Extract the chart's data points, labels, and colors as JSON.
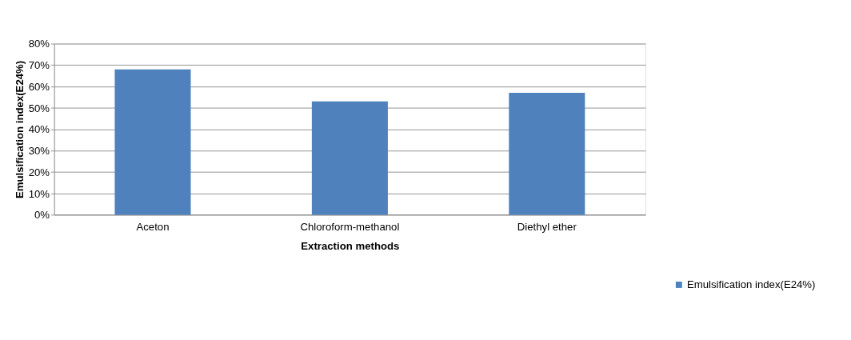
{
  "chart_data": {
    "type": "bar",
    "xlabel": "Extraction methods",
    "ylabel": "Emulsification index(E24%)",
    "categories": [
      "Aceton",
      "Chloroform-methanol",
      "Diethyl ether"
    ],
    "series": [
      {
        "name": "Emulsification index(E24%)",
        "color": "#4f81bd",
        "values": [
          68,
          53,
          57
        ]
      }
    ],
    "ylim": [
      0,
      80
    ],
    "yticks": [
      {
        "value": 0,
        "label": "0%"
      },
      {
        "value": 10,
        "label": "10%"
      },
      {
        "value": 20,
        "label": "20%"
      },
      {
        "value": 30,
        "label": "30%"
      },
      {
        "value": 40,
        "label": "40%"
      },
      {
        "value": 50,
        "label": "50%"
      },
      {
        "value": 60,
        "label": "60%"
      },
      {
        "value": 70,
        "label": "70%"
      },
      {
        "value": 80,
        "label": "80%"
      }
    ],
    "grid": "y",
    "legend": "bottom right"
  }
}
